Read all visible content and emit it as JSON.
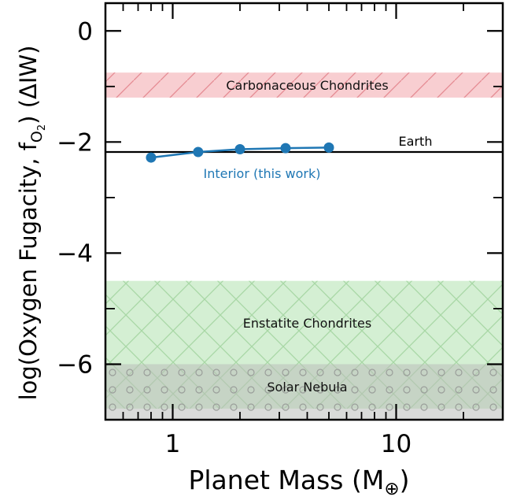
{
  "chart_data": {
    "type": "line",
    "xlabel_main": "Planet Mass (M",
    "xlabel_sub": "⊕",
    "xlabel_close": ")",
    "ylabel_main": "log(Oxygen Fugacity, f",
    "ylabel_sub": "O",
    "ylabel_subsub": "2",
    "ylabel_tail": ") (ΔIW)",
    "xscale": "log",
    "xlim": [
      0.5,
      30
    ],
    "ylim": [
      -7,
      0.5
    ],
    "x_tick_labels": [
      "1",
      "10"
    ],
    "y_tick_labels": [
      "0",
      "−2",
      "−4",
      "−6"
    ],
    "bands": [
      {
        "label": "Carbonaceous Chondrites",
        "y_range": [
          -1.2,
          -0.75
        ],
        "color": "#f4b3b8",
        "hatch": "diagonal"
      },
      {
        "label": "Enstatite Chondrites",
        "y_range": [
          -6.8,
          -4.5
        ],
        "color": "#c6e9c4",
        "hatch": "cross"
      },
      {
        "label": "Solar Nebula",
        "y_range": [
          -7.0,
          -6.0
        ],
        "color": "#b9bdb9",
        "hatch": "circles"
      }
    ],
    "earth": {
      "label": "Earth",
      "y": -2.18,
      "color": "#000000"
    },
    "series": [
      {
        "name": "Interior (this work)",
        "color": "#1f77b4",
        "x": [
          0.8,
          1.3,
          2.0,
          3.2,
          5.0
        ],
        "y": [
          -2.28,
          -2.18,
          -2.13,
          -2.11,
          -2.1
        ]
      }
    ]
  }
}
